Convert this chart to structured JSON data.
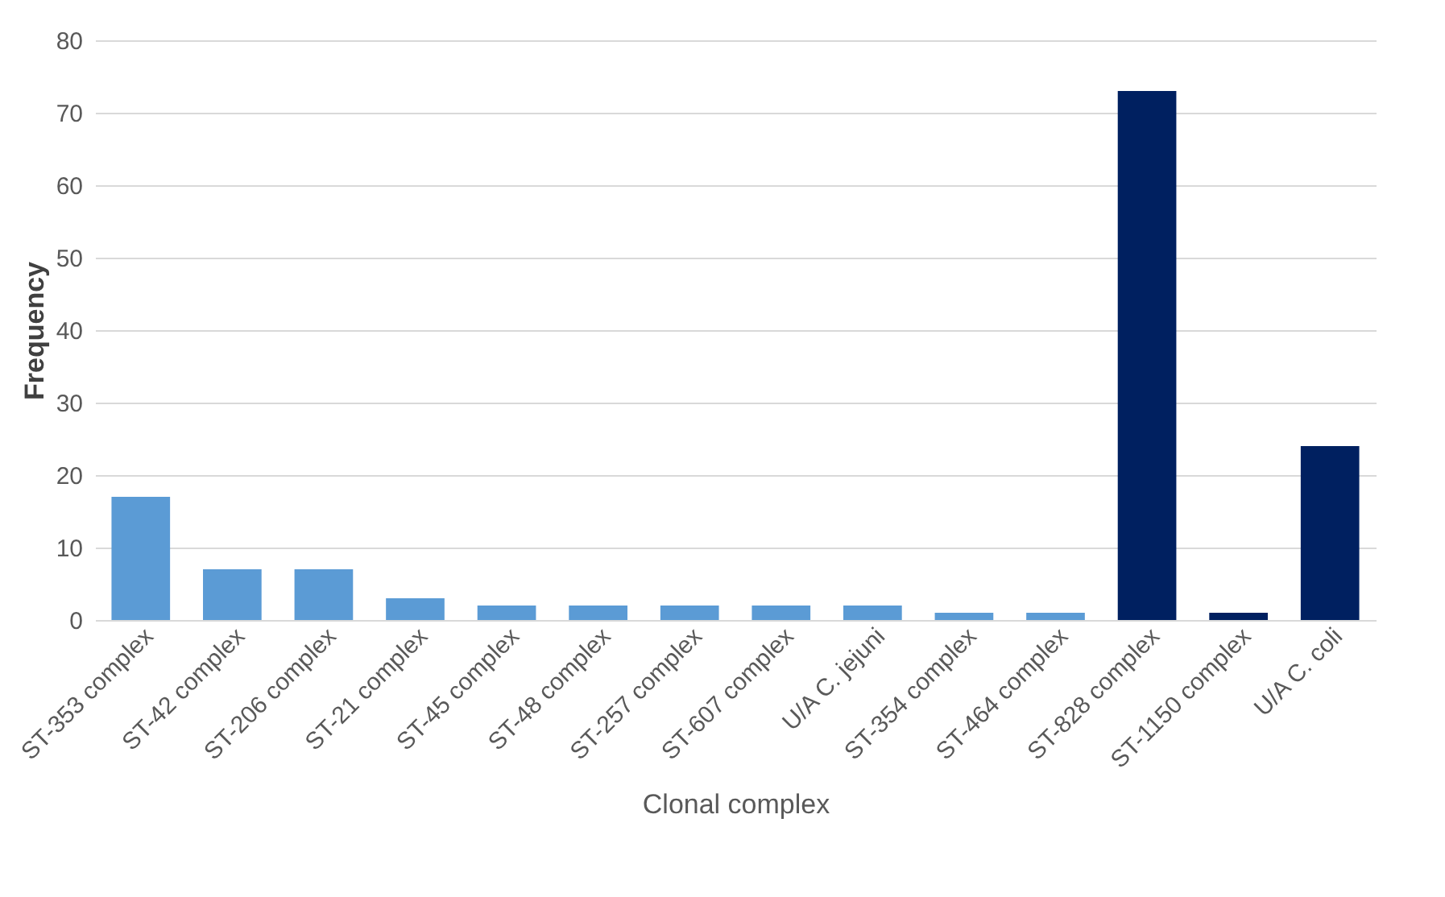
{
  "chart_data": {
    "type": "bar",
    "xlabel": "Clonal complex",
    "ylabel": "Frequency",
    "categories": [
      "ST-353 complex",
      "ST-42 complex",
      "ST-206 complex",
      "ST-21 complex",
      "ST-45 complex",
      "ST-48 complex",
      "ST-257 complex",
      "ST-607 complex",
      "U/A C. jejuni",
      "ST-354 complex",
      "ST-464 complex",
      "ST-828 complex",
      "ST-1150 complex",
      "U/A C. coli"
    ],
    "values": [
      17,
      7,
      7,
      3,
      2,
      2,
      2,
      2,
      2,
      1,
      1,
      73,
      1,
      24
    ],
    "colors": [
      "#5b9bd5",
      "#5b9bd5",
      "#5b9bd5",
      "#5b9bd5",
      "#5b9bd5",
      "#5b9bd5",
      "#5b9bd5",
      "#5b9bd5",
      "#5b9bd5",
      "#5b9bd5",
      "#5b9bd5",
      "#002060",
      "#002060",
      "#002060"
    ],
    "ylim": [
      0,
      80
    ],
    "yticks": [
      0,
      10,
      20,
      30,
      40,
      50,
      60,
      70,
      80
    ],
    "grid": "y"
  }
}
